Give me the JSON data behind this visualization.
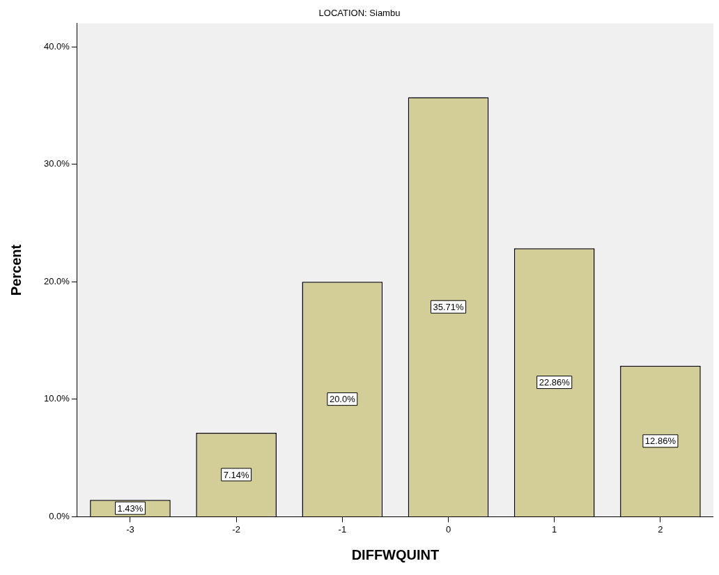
{
  "chart_data": {
    "type": "bar",
    "title": "LOCATION: Siambu",
    "xlabel": "DIFFWQUINT",
    "ylabel": "Percent",
    "categories": [
      "-3",
      "-2",
      "-1",
      "0",
      "1",
      "2"
    ],
    "values": [
      1.43,
      7.14,
      20.0,
      35.71,
      22.86,
      12.86
    ],
    "value_labels": [
      "1.43%",
      "7.14%",
      "20.0%",
      "35.71%",
      "22.86%",
      "12.86%"
    ],
    "color": "#d3ce97",
    "ylim": [
      0,
      42
    ],
    "yticks": [
      {
        "value": 0,
        "label": "0.0%"
      },
      {
        "value": 10,
        "label": "10.0%"
      },
      {
        "value": 20,
        "label": "20.0%"
      },
      {
        "value": 30,
        "label": "30.0%"
      },
      {
        "value": 40,
        "label": "40.0%"
      }
    ],
    "grid": false,
    "legend": false
  }
}
